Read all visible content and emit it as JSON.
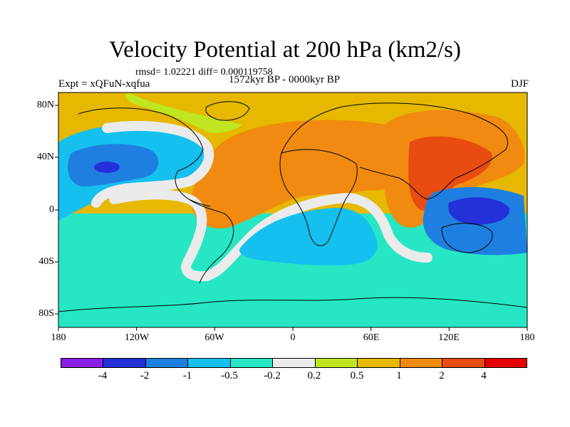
{
  "title": "Velocity Potential at 200 hPa (km2/s)",
  "stats": "rmsd= 1.02221 diff= 0.000119758",
  "period": "1572kyr BP - 0000kyr BP",
  "experiment": "Expt = xQFuN-xqfua",
  "season": "DJF",
  "lat_labels": [
    "80N",
    "40N",
    "0",
    "40S",
    "80S"
  ],
  "lon_labels": [
    "180",
    "120W",
    "60W",
    "0",
    "60E",
    "120E",
    "180"
  ],
  "colorbar": {
    "colors": [
      "#8a1ee6",
      "#2430d8",
      "#1f7fe0",
      "#16c0ee",
      "#27e6c4",
      "#ebebeb",
      "#bfe620",
      "#e6b800",
      "#f08a10",
      "#e84c10",
      "#e60000"
    ],
    "labels": [
      "-4",
      "-2",
      "-1",
      "-0.5",
      "-0.2",
      "0.2",
      "0.5",
      "1",
      "2",
      "4"
    ]
  },
  "regions": [
    {
      "name": "southern-cyan-band",
      "color": "#27e6c4"
    },
    {
      "name": "dateline-positive-orange",
      "color": "#e6b800"
    },
    {
      "name": "north-pacific-blue",
      "color": "#16c0ee"
    },
    {
      "name": "north-pacific-core",
      "color": "#1f7fe0"
    },
    {
      "name": "north-pacific-min",
      "color": "#2430d8"
    },
    {
      "name": "atlantic-africa-orange",
      "color": "#f08a10"
    },
    {
      "name": "asia-pacific-orange",
      "color": "#f08a10"
    },
    {
      "name": "asia-red-core",
      "color": "#e84c10"
    },
    {
      "name": "white-transition-band",
      "color": "#ebebeb"
    },
    {
      "name": "atlantic-cyan",
      "color": "#16c0ee"
    },
    {
      "name": "indian-ocean-blue",
      "color": "#16c0ee"
    },
    {
      "name": "maritime-continent-blue",
      "color": "#1f7fe0"
    },
    {
      "name": "maritime-continent-min",
      "color": "#2430d8"
    },
    {
      "name": "arctic-green",
      "color": "#bfe620"
    }
  ]
}
